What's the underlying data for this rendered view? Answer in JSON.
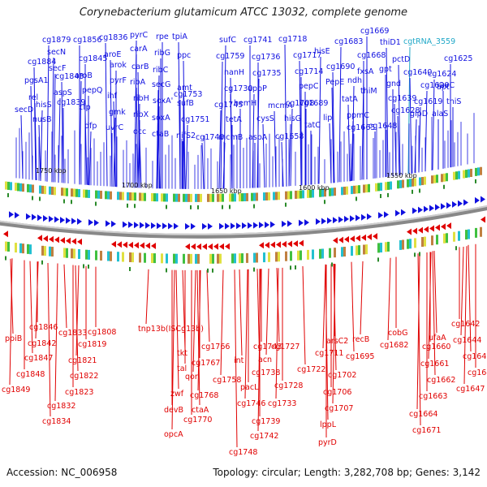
{
  "title": "Corynebacterium glutamicum ATCC 13032, complete genome",
  "footer": {
    "accession": "Accession: NC_006958",
    "summary": "Topology: circular; Length: 3,282,708 bp; Genes: 3,142"
  },
  "colors": {
    "forward": "#1010e0",
    "reverse": "#e00000",
    "rna": "#20a8c8",
    "backbone": "#888888"
  },
  "kbp_markers": [
    "1750 kbp",
    "1700 kbp",
    "1650 kbp",
    "1600 kbp",
    "1550 kbp"
  ],
  "forward_labels": [
    "cg1879",
    "cg1856",
    "cg1836",
    "pyrC",
    "rpe",
    "tpiA",
    "sufC",
    "cg1741",
    "cg1718",
    "cg1683",
    "cg1669",
    "cg1884",
    "secN",
    "cg1845",
    "aroE",
    "carA",
    "ribG",
    "ppc",
    "cg1759",
    "cg1736",
    "cg1717",
    "hisE",
    "cg1668",
    "thiD1",
    "cgtRNA_3559",
    "cg1625",
    "pgsA1",
    "secF",
    "arok",
    "carB",
    "ribC",
    "amt",
    "nanH",
    "cg1735",
    "cg1714",
    "cg1690",
    "fxsA",
    "gpt",
    "pctD",
    "cg1624",
    "apt",
    "cg1843",
    "aroB",
    "pyrF",
    "ribA",
    "secG",
    "cg1753",
    "cg1730",
    "uppP",
    "pepC",
    "PepE",
    "ndh",
    "gnd",
    "cg1640",
    "cg1620",
    "ruvC",
    "rel",
    "aspS",
    "pepQ",
    "ihf",
    "ribH",
    "soxA'",
    "sufB",
    "cg1745",
    "hemH",
    "mcmA",
    "cg1708",
    "cg1689",
    "tatA",
    "ppmC",
    "thiM",
    "cg1639",
    "cg1619",
    "thiS",
    "secD",
    "hisS",
    "cg1839",
    "cfp",
    "gmk",
    "ribX",
    "soxA",
    "cg1751",
    "tetA",
    "cysS",
    "hisG",
    "tatC",
    "lip",
    "cg1665",
    "cg1648",
    "cg1628",
    "glpD",
    "alaS",
    "nusB",
    "dfp",
    "uvrC",
    "occ",
    "ctaB",
    "nifS2",
    "cg1740",
    "mcmB",
    "aspA",
    "cg1658"
  ],
  "reverse_labels": [
    "ppiB",
    "cg1846",
    "cg1842",
    "cg1847",
    "cg1848",
    "cg1849",
    "cg1833",
    "cg1819",
    "cg1821",
    "cg1822",
    "cg1823",
    "cg1832",
    "cg1834",
    "cg1808",
    "tnp13b(ISCg13b)",
    "tkt",
    "tal",
    "qor",
    "zwf",
    "devB",
    "opcA",
    "cg1766",
    "cg1767",
    "cg1768",
    "ctaA",
    "cg1770",
    "cg1758",
    "int",
    "pacL",
    "cg1746",
    "cg1748",
    "cg1743",
    "acn",
    "cg1738",
    "cg1739",
    "cg1742",
    "cg1727",
    "cg1728",
    "cg1733",
    "cg1722",
    "arsC2",
    "cg1711",
    "cg1702",
    "cg1706",
    "cg1707",
    "lppL",
    "pyrD",
    "recB",
    "cg1695",
    "cobG",
    "cg1682",
    "ufaA",
    "cg1660",
    "cg1661",
    "cg1662",
    "cg1663",
    "cg1664",
    "cg1671",
    "cg1642",
    "cg1644",
    "cg1645",
    "cg1646",
    "cg1647"
  ]
}
